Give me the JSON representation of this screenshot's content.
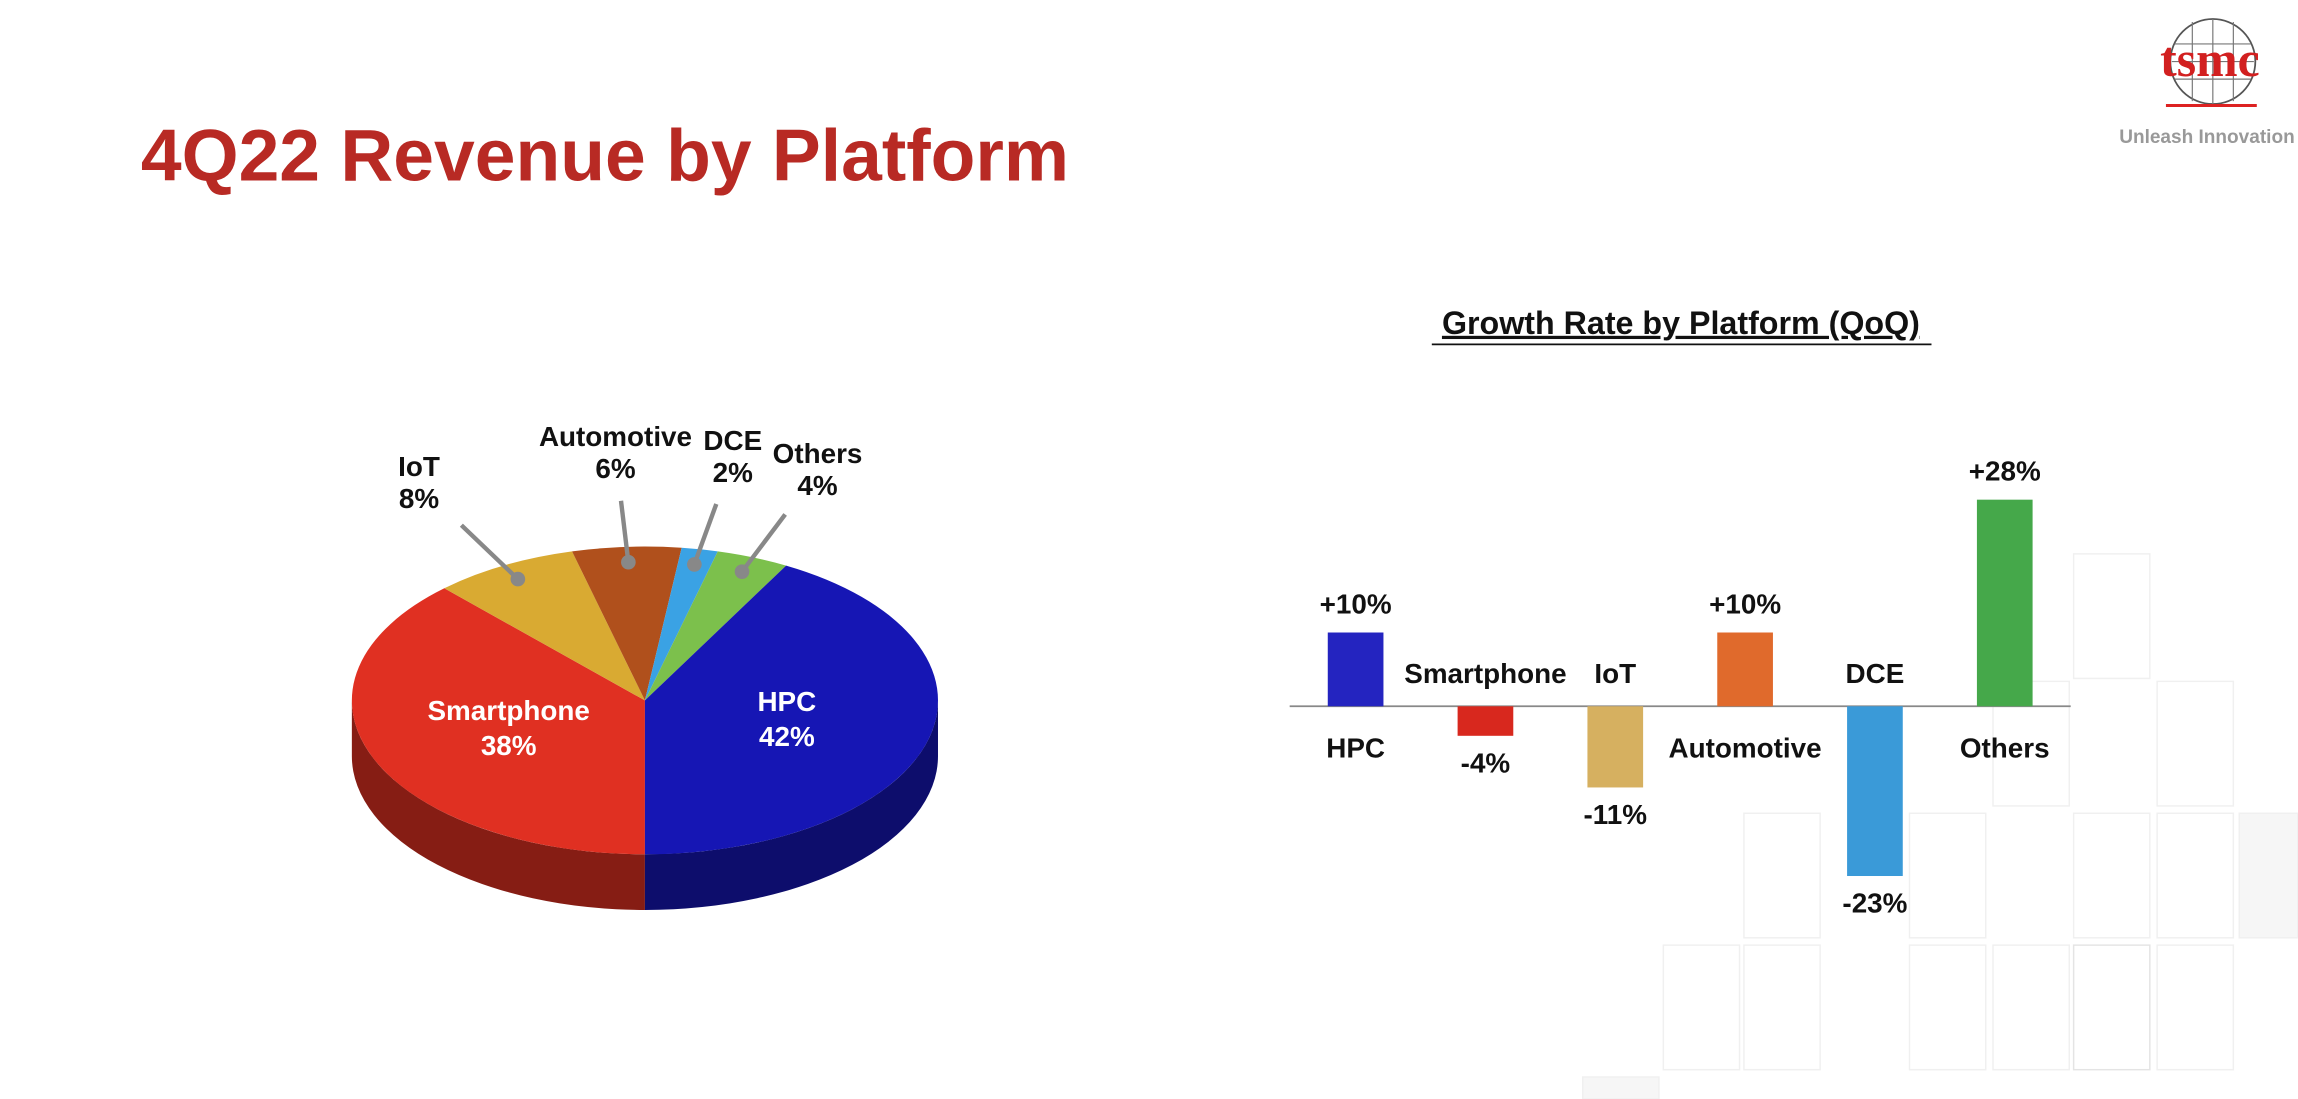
{
  "title": "4Q22 Revenue by Platform",
  "logo": {
    "text": "tsmc",
    "tagline": "Unleash Innovation"
  },
  "chart_data": [
    {
      "type": "pie",
      "categories": [
        "Smartphone",
        "IoT",
        "Automotive",
        "DCE",
        "Others",
        "HPC"
      ],
      "values": [
        38,
        8,
        6,
        2,
        4,
        42
      ],
      "value_labels": [
        "38%",
        "8%",
        "6%",
        "2%",
        "4%",
        "42%"
      ],
      "colors": [
        "#e03022",
        "#d9aa32",
        "#b0501c",
        "#3aa2e4",
        "#7cc04c",
        "#1616b4"
      ]
    },
    {
      "type": "bar",
      "title": "Growth Rate by Platform (QoQ)",
      "categories": [
        "HPC",
        "Smartphone",
        "IoT",
        "Automotive",
        "DCE",
        "Others"
      ],
      "values": [
        10,
        -4,
        -11,
        10,
        -23,
        28
      ],
      "value_labels": [
        "+10%",
        "-4%",
        "-11%",
        "+10%",
        "-23%",
        "+28%"
      ],
      "colors": [
        "#2424c0",
        "#d8281e",
        "#d6b060",
        "#e06a2c",
        "#3a9ad8",
        "#45a84a"
      ]
    }
  ]
}
